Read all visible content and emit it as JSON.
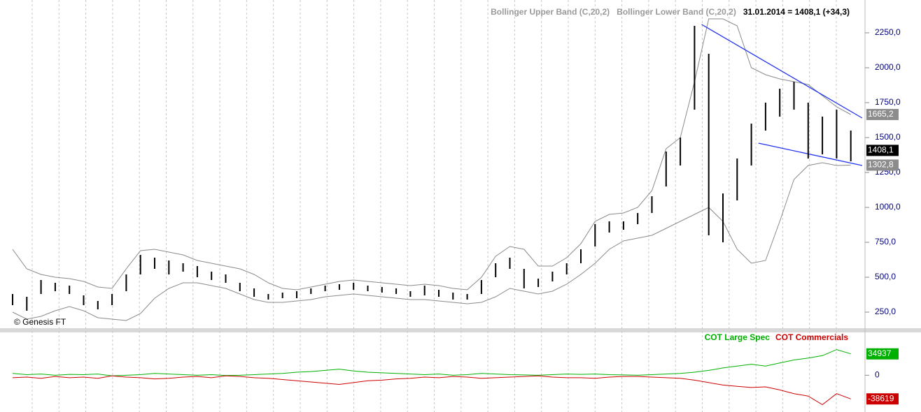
{
  "chart_data": [
    {
      "type": "ohlc",
      "header": "31.01.2014 = 1408,1 (+34,3)",
      "watermark": "© Genesis FT",
      "price": {
        "high": [
          380,
          360,
          480,
          460,
          440,
          370,
          330,
          380,
          520,
          660,
          640,
          620,
          600,
          580,
          540,
          520,
          460,
          420,
          380,
          390,
          400,
          420,
          440,
          450,
          460,
          440,
          430,
          420,
          400,
          440,
          410,
          390,
          380,
          480,
          600,
          640,
          560,
          490,
          540,
          600,
          700,
          880,
          900,
          900,
          960,
          1080,
          1400,
          1500,
          2300,
          2100,
          1100,
          1350,
          1600,
          1750,
          1850,
          1900,
          1750,
          1650,
          1700,
          1550
        ],
        "low": [
          300,
          260,
          380,
          400,
          380,
          300,
          270,
          300,
          400,
          520,
          560,
          520,
          540,
          500,
          480,
          460,
          400,
          360,
          340,
          350,
          350,
          380,
          400,
          410,
          410,
          400,
          390,
          380,
          360,
          370,
          360,
          340,
          340,
          380,
          500,
          560,
          420,
          430,
          470,
          520,
          600,
          720,
          820,
          840,
          880,
          960,
          1150,
          1300,
          1700,
          800,
          750,
          1050,
          1300,
          1550,
          1650,
          1700,
          1350,
          1380,
          1350,
          1330
        ],
        "last": 1408.1,
        "last_label": "1408,1",
        "color": "#000000"
      },
      "series": [
        {
          "name": "Bollinger Upper Band (C,20,2)",
          "color": "#8a8a8a",
          "last_label": "1665,2",
          "values": [
            700,
            560,
            520,
            500,
            490,
            470,
            430,
            420,
            560,
            690,
            700,
            680,
            660,
            620,
            600,
            580,
            560,
            520,
            460,
            420,
            410,
            430,
            450,
            470,
            480,
            470,
            460,
            450,
            440,
            450,
            440,
            420,
            410,
            500,
            650,
            720,
            700,
            580,
            580,
            640,
            740,
            900,
            950,
            960,
            1000,
            1120,
            1420,
            1500,
            1900,
            2350,
            2350,
            2300,
            2000,
            1950,
            1920,
            1900,
            1880,
            1800,
            1720,
            1665.2
          ]
        },
        {
          "name": "Bollinger Lower Band (C,20,2)",
          "color": "#8a8a8a",
          "last_label": "1302,8",
          "values": [
            250,
            200,
            220,
            260,
            290,
            260,
            210,
            200,
            190,
            240,
            350,
            420,
            460,
            460,
            440,
            420,
            380,
            340,
            320,
            320,
            330,
            340,
            360,
            370,
            380,
            370,
            360,
            350,
            340,
            340,
            330,
            320,
            310,
            320,
            360,
            420,
            400,
            380,
            400,
            450,
            520,
            600,
            700,
            760,
            780,
            800,
            850,
            900,
            950,
            1000,
            900,
            700,
            600,
            620,
            900,
            1200,
            1300,
            1320,
            1300,
            1302.8
          ]
        }
      ],
      "trendlines": [
        {
          "x": [
            48.5,
            59.8
          ],
          "y": [
            2310,
            1640
          ]
        },
        {
          "x": [
            52.5,
            59.8
          ],
          "y": [
            1460,
            1300
          ]
        }
      ],
      "trend_color": "#2233ee",
      "ylim": [
        135,
        2445
      ],
      "yticks": [
        {
          "value": 250,
          "label": "250,0"
        },
        {
          "value": 500,
          "label": "500,0"
        },
        {
          "value": 750,
          "label": "750,0"
        },
        {
          "value": 1000,
          "label": "1000,0"
        },
        {
          "value": 1250,
          "label": "1250,0"
        },
        {
          "value": 1500,
          "label": "1500,0"
        },
        {
          "value": 1750,
          "label": "1750,0"
        },
        {
          "value": 2000,
          "label": "2000,0"
        },
        {
          "value": 2250,
          "label": "2250,0"
        }
      ]
    },
    {
      "type": "line",
      "series": [
        {
          "name": "COT Large Spec",
          "color": "#00b000",
          "last_label": "34937",
          "values": [
            3000,
            1000,
            2000,
            0,
            1500,
            1000,
            2000,
            -1000,
            0,
            1000,
            3000,
            2000,
            1000,
            0,
            1000,
            -500,
            0,
            1000,
            2000,
            3000,
            5000,
            6000,
            8000,
            10000,
            7000,
            5000,
            4000,
            3000,
            2000,
            1000,
            2000,
            0,
            1000,
            3000,
            2000,
            1000,
            500,
            0,
            1000,
            2000,
            1500,
            2000,
            1000,
            500,
            0,
            1000,
            2000,
            3000,
            5000,
            8000,
            12000,
            15000,
            18000,
            15000,
            20000,
            25000,
            28000,
            32000,
            42000,
            34937
          ]
        },
        {
          "name": "COT Commercials",
          "color": "#cc0000",
          "last_label": "-38619",
          "values": [
            -4000,
            -3000,
            -5000,
            -2000,
            -4000,
            -3000,
            -5000,
            -1000,
            -3000,
            -4000,
            -6000,
            -5000,
            -3000,
            -2000,
            -4000,
            -1000,
            -2000,
            -4000,
            -5000,
            -7000,
            -9000,
            -11000,
            -13000,
            -15000,
            -12000,
            -9000,
            -8000,
            -6000,
            -5000,
            -3000,
            -4000,
            -2000,
            -3000,
            -5000,
            -4000,
            -3000,
            -2000,
            -1000,
            -3000,
            -4000,
            -4000,
            -5000,
            -3000,
            -2000,
            -2000,
            -3000,
            -4000,
            -5000,
            -8000,
            -12000,
            -16000,
            -18000,
            -20000,
            -19000,
            -24000,
            -30000,
            -34000,
            -48000,
            -30000,
            -38619
          ]
        }
      ],
      "ylim": [
        -60000,
        70000
      ],
      "yticks": [
        0
      ]
    }
  ]
}
